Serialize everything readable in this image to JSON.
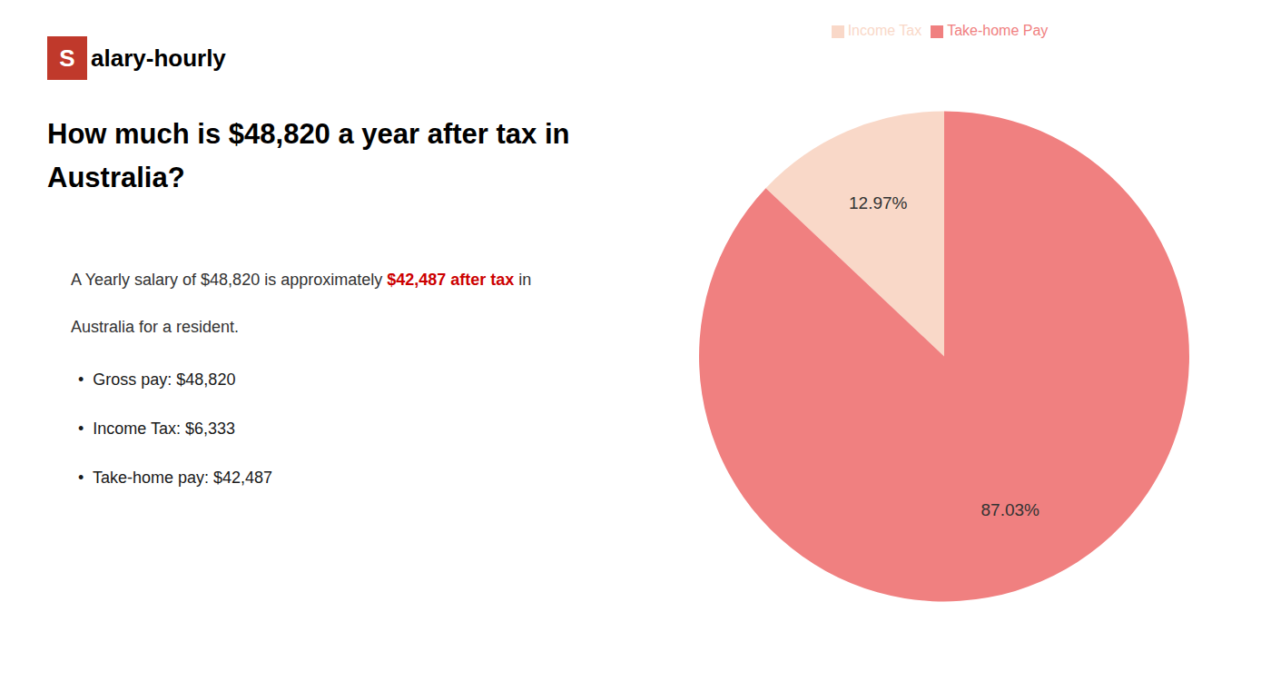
{
  "chart_data": {
    "type": "pie",
    "title": [
      "How much is $48,820 a year after tax in",
      "Australia?"
    ],
    "categories": [
      "Income Tax",
      "Take-home Pay"
    ],
    "values": [
      12.97,
      87.03
    ],
    "value_labels": [
      "12.97%",
      "87.03%"
    ],
    "data_labels": true,
    "colors": [
      "#f9d8c8",
      "#f08080"
    ],
    "legend": "top",
    "annotations": [
      {
        "text": "S",
        "color": "#c0392b"
      },
      {
        "text": "alary-hourly"
      },
      {
        "text": "A Yearly salary of $48,820 is approximately "
      },
      {
        "text": "$42,487 after tax",
        "color": "#cc0000"
      },
      {
        "text": " in"
      },
      {
        "text": "Australia for a resident."
      },
      {
        "text": "•  Gross pay: $48,820"
      },
      {
        "text": "•  Income Tax: $6,333"
      },
      {
        "text": "•  Take-home pay: $42,487"
      }
    ]
  }
}
